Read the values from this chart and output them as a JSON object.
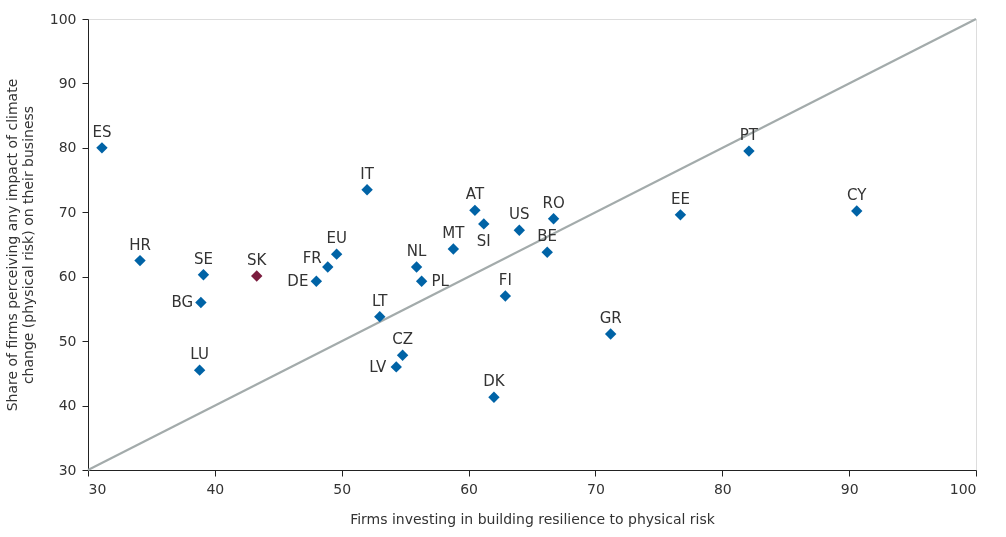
{
  "chart_data": {
    "type": "scatter",
    "xlabel": "Firms investing in building resilience to physical risk",
    "ylabel": "Share of firms perceiving any impact of climate change (physical risk) on their business",
    "xlim": [
      30,
      100
    ],
    "ylim": [
      30,
      100
    ],
    "xticks": [
      30,
      40,
      50,
      60,
      70,
      80,
      90,
      100
    ],
    "yticks": [
      30,
      40,
      50,
      60,
      70,
      80,
      90,
      100
    ],
    "grid": false,
    "marker": "diamond",
    "series": [
      {
        "type": "line",
        "color": "#a3abab",
        "x": [
          30,
          100
        ],
        "values": [
          30,
          100
        ],
        "marker": "none"
      },
      {
        "name": "ES",
        "color": "#0063a6",
        "x": [
          31.1
        ],
        "values": [
          80.0
        ]
      },
      {
        "name": "HR",
        "color": "#0063a6",
        "x": [
          34.1
        ],
        "values": [
          62.5
        ]
      },
      {
        "name": "SE",
        "color": "#0063a6",
        "x": [
          39.1
        ],
        "values": [
          60.3
        ]
      },
      {
        "name": "BG",
        "color": "#0063a6",
        "x": [
          38.9
        ],
        "values": [
          56.0
        ]
      },
      {
        "name": "LU",
        "color": "#0063a6",
        "x": [
          38.8
        ],
        "values": [
          45.5
        ]
      },
      {
        "name": "SK",
        "color": "#7b1c3e",
        "x": [
          43.3
        ],
        "values": [
          60.1
        ]
      },
      {
        "name": "DE",
        "color": "#0063a6",
        "x": [
          48.0
        ],
        "values": [
          59.3
        ]
      },
      {
        "name": "FR",
        "color": "#0063a6",
        "x": [
          48.9
        ],
        "values": [
          61.5
        ]
      },
      {
        "name": "EU",
        "color": "#0063a6",
        "x": [
          49.6
        ],
        "values": [
          63.5
        ]
      },
      {
        "name": "IT",
        "color": "#0063a6",
        "x": [
          52.0
        ],
        "values": [
          73.5
        ]
      },
      {
        "name": "LT",
        "color": "#0063a6",
        "x": [
          53.0
        ],
        "values": [
          53.8
        ]
      },
      {
        "name": "LV",
        "color": "#0063a6",
        "x": [
          54.3
        ],
        "values": [
          46.0
        ]
      },
      {
        "name": "CZ",
        "color": "#0063a6",
        "x": [
          54.8
        ],
        "values": [
          47.8
        ]
      },
      {
        "name": "NL",
        "color": "#0063a6",
        "x": [
          55.9
        ],
        "values": [
          61.5
        ]
      },
      {
        "name": "PL",
        "color": "#0063a6",
        "x": [
          56.3
        ],
        "values": [
          59.3
        ]
      },
      {
        "name": "MT",
        "color": "#0063a6",
        "x": [
          58.8
        ],
        "values": [
          64.3
        ]
      },
      {
        "name": "AT",
        "color": "#0063a6",
        "x": [
          60.5
        ],
        "values": [
          70.3
        ]
      },
      {
        "name": "SI",
        "color": "#0063a6",
        "x": [
          61.2
        ],
        "values": [
          68.2
        ]
      },
      {
        "name": "US",
        "color": "#0063a6",
        "x": [
          64.0
        ],
        "values": [
          67.2
        ]
      },
      {
        "name": "RO",
        "color": "#0063a6",
        "x": [
          66.7
        ],
        "values": [
          69.0
        ]
      },
      {
        "name": "BE",
        "color": "#0063a6",
        "x": [
          66.2
        ],
        "values": [
          63.8
        ]
      },
      {
        "name": "FI",
        "color": "#0063a6",
        "x": [
          62.9
        ],
        "values": [
          57.0
        ]
      },
      {
        "name": "DK",
        "color": "#0063a6",
        "x": [
          62.0
        ],
        "values": [
          41.3
        ]
      },
      {
        "name": "GR",
        "color": "#0063a6",
        "x": [
          71.2
        ],
        "values": [
          51.1
        ]
      },
      {
        "name": "EE",
        "color": "#0063a6",
        "x": [
          76.7
        ],
        "values": [
          69.6
        ]
      },
      {
        "name": "PT",
        "color": "#0063a6",
        "x": [
          82.1
        ],
        "values": [
          79.5
        ]
      },
      {
        "name": "CY",
        "color": "#0063a6",
        "x": [
          90.6
        ],
        "values": [
          70.2
        ]
      }
    ]
  }
}
